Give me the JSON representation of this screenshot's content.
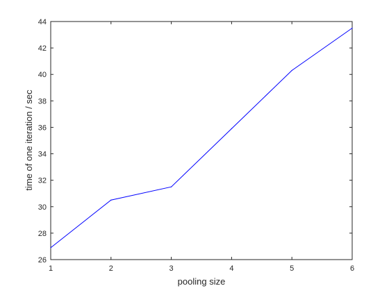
{
  "chart_data": {
    "type": "line",
    "title": "",
    "xlabel": "pooling size",
    "ylabel": "time of one iteration / sec",
    "xlim": [
      1,
      6
    ],
    "ylim": [
      26,
      44
    ],
    "xticks": [
      1,
      2,
      3,
      4,
      5,
      6
    ],
    "yticks": [
      26,
      28,
      30,
      32,
      34,
      36,
      38,
      40,
      42,
      44
    ],
    "grid": false,
    "legend": "none",
    "series": [
      {
        "color": "#0000ff",
        "x": [
          1,
          2,
          3,
          4,
          5,
          6
        ],
        "y": [
          26.9,
          30.5,
          31.5,
          35.9,
          40.3,
          43.5
        ]
      }
    ]
  }
}
